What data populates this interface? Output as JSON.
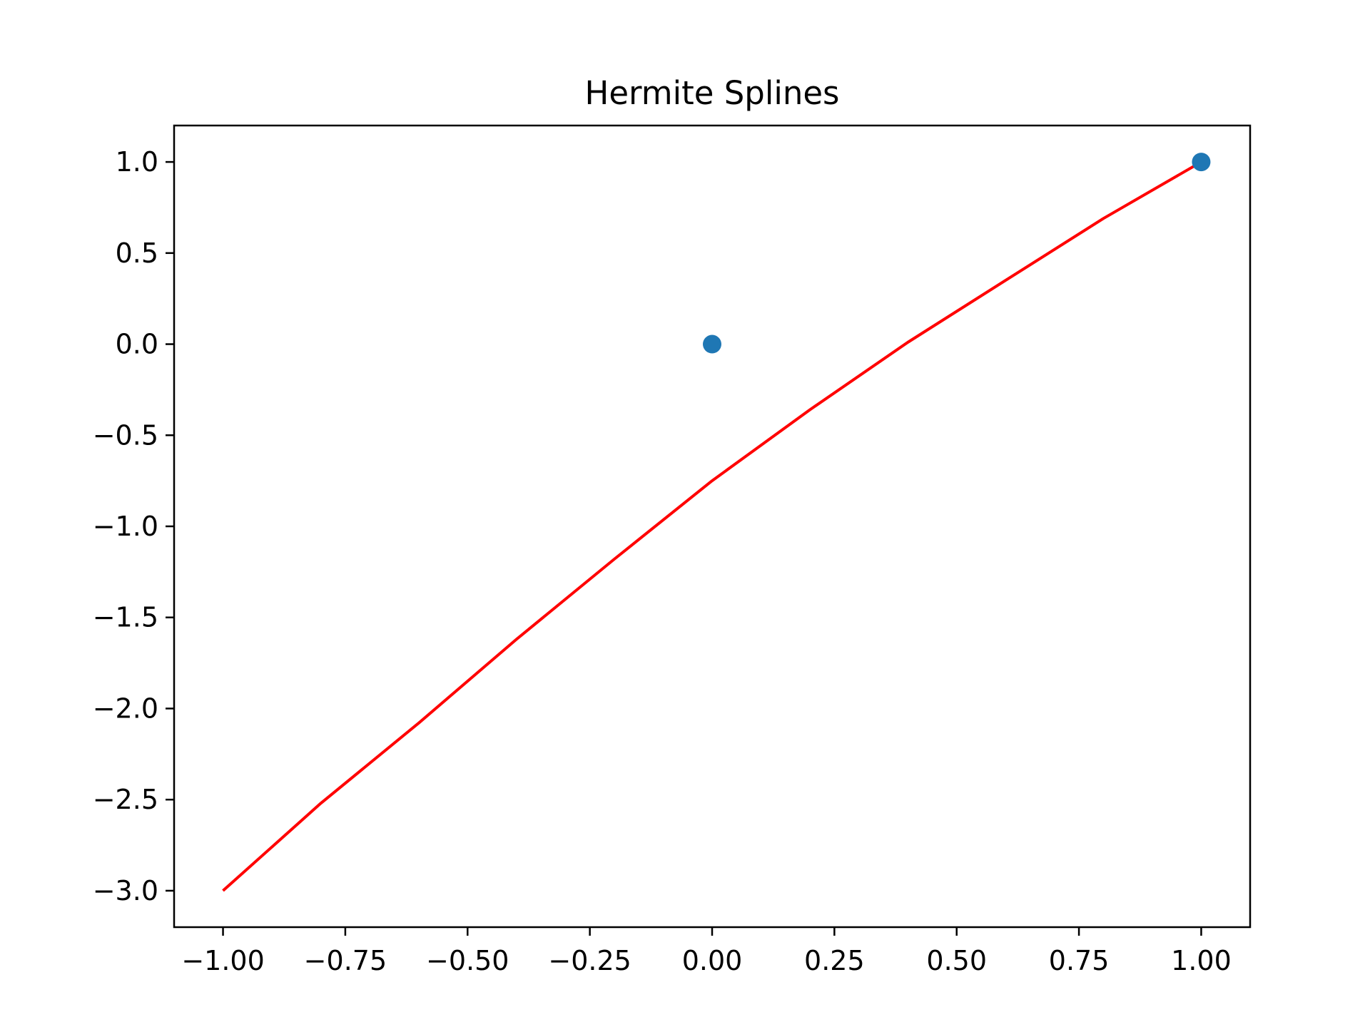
{
  "chart_data": {
    "type": "line",
    "title": "Hermite Splines",
    "xlabel": "",
    "ylabel": "",
    "xlim": [
      -1.1,
      1.1
    ],
    "ylim": [
      -3.2,
      1.2
    ],
    "grid": false,
    "xticks": [
      -1.0,
      -0.75,
      -0.5,
      -0.25,
      0.0,
      0.25,
      0.5,
      0.75,
      1.0
    ],
    "xtick_labels": [
      "−1.00",
      "−0.75",
      "−0.50",
      "−0.25",
      "0.00",
      "0.25",
      "0.50",
      "0.75",
      "1.00"
    ],
    "yticks": [
      1.0,
      0.5,
      0.0,
      -0.5,
      -1.0,
      -1.5,
      -2.0,
      -2.5,
      -3.0
    ],
    "ytick_labels": [
      "1.0",
      "0.5",
      "0.0",
      "−0.5",
      "−1.0",
      "−1.5",
      "−2.0",
      "−2.5",
      "−3.0"
    ],
    "series": [
      {
        "kind": "line",
        "color": "#ff0000",
        "x": [
          -1.0,
          -0.8,
          -0.6,
          -0.4,
          -0.2,
          0.0,
          0.2,
          0.4,
          0.6,
          0.8,
          1.0
        ],
        "y": [
          -3.0,
          -2.52,
          -2.08,
          -1.62,
          -1.18,
          -0.75,
          -0.36,
          0.01,
          0.35,
          0.69,
          1.0
        ]
      },
      {
        "kind": "scatter",
        "color": "#1f77b4",
        "x": [
          0.0,
          1.0
        ],
        "y": [
          0.0,
          1.0
        ]
      }
    ]
  }
}
